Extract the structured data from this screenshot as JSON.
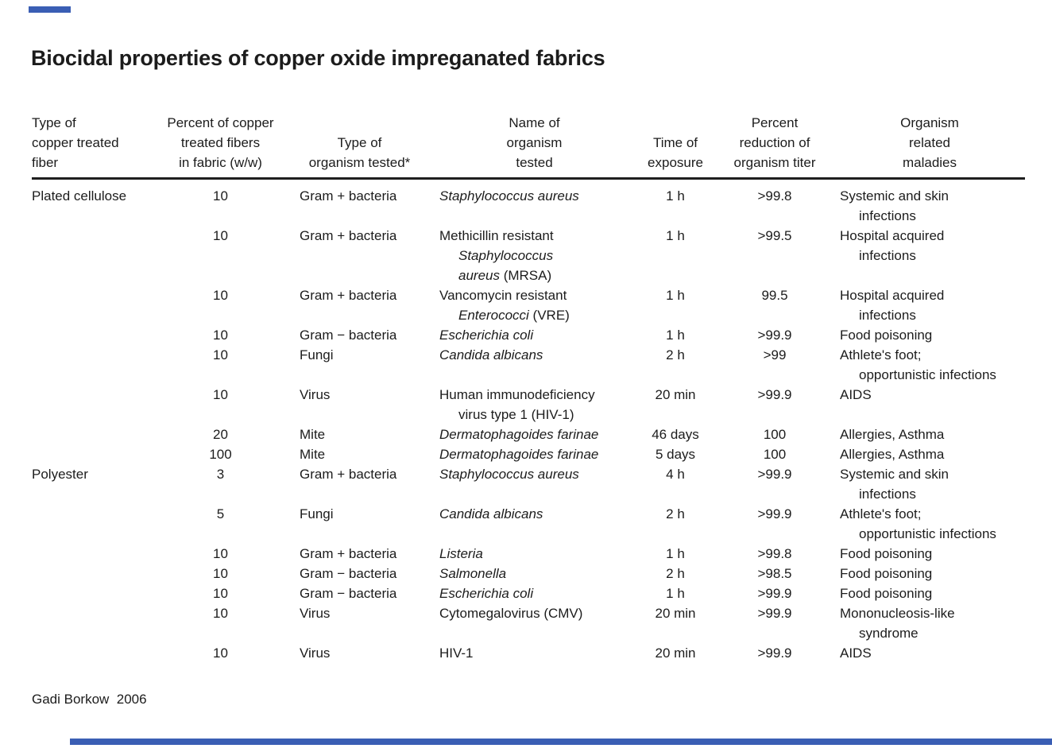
{
  "page": {
    "title": "Biocidal properties of copper oxide impreganated fabrics",
    "footer_credit": "Gadi Borkow  2006",
    "accent_blue": "#3a5eb4"
  },
  "table": {
    "headers": [
      {
        "align": "left",
        "lines": [
          "Type of",
          "copper treated",
          "fiber"
        ]
      },
      {
        "align": "center",
        "lines": [
          "Percent of copper",
          "treated fibers",
          "in fabric (w/w)"
        ]
      },
      {
        "align": "center",
        "lines": [
          "",
          "Type of",
          "organism tested*"
        ]
      },
      {
        "align": "center",
        "lines": [
          "Name of",
          "organism",
          "tested"
        ]
      },
      {
        "align": "center",
        "lines": [
          "",
          "Time of",
          "exposure"
        ]
      },
      {
        "align": "center",
        "lines": [
          "Percent",
          "reduction of",
          "organism titer"
        ]
      },
      {
        "align": "center",
        "lines": [
          "Organism",
          "related",
          "maladies"
        ]
      }
    ],
    "rows": [
      {
        "fiber": "Plated cellulose",
        "percent": "10",
        "type": "Gram + bacteria",
        "organism": [
          {
            "ind": 0,
            "segs": [
              {
                "t": "Staphylococcus aureus",
                "i": true
              }
            ]
          }
        ],
        "time": "1 h",
        "reduction": ">99.8",
        "maladies": [
          {
            "ind": 0,
            "t": "Systemic and skin"
          },
          {
            "ind": 1,
            "t": "infections"
          }
        ]
      },
      {
        "fiber": "",
        "percent": "10",
        "type": "Gram + bacteria",
        "organism": [
          {
            "ind": 0,
            "segs": [
              {
                "t": "Methicillin resistant"
              }
            ]
          },
          {
            "ind": 1,
            "segs": [
              {
                "t": "Staphylococcus",
                "i": true
              }
            ]
          },
          {
            "ind": 1,
            "segs": [
              {
                "t": "aureus",
                "i": true
              },
              {
                "t": " (MRSA)"
              }
            ]
          }
        ],
        "time": "1 h",
        "reduction": ">99.5",
        "maladies": [
          {
            "ind": 0,
            "t": "Hospital acquired"
          },
          {
            "ind": 1,
            "t": "infections"
          }
        ]
      },
      {
        "fiber": "",
        "percent": "10",
        "type": "Gram + bacteria",
        "organism": [
          {
            "ind": 0,
            "segs": [
              {
                "t": "Vancomycin resistant"
              }
            ]
          },
          {
            "ind": 1,
            "segs": [
              {
                "t": "Enterococci",
                "i": true
              },
              {
                "t": " (VRE)"
              }
            ]
          }
        ],
        "time": "1 h",
        "reduction": "99.5",
        "maladies": [
          {
            "ind": 0,
            "t": "Hospital acquired"
          },
          {
            "ind": 1,
            "t": "infections"
          }
        ]
      },
      {
        "fiber": "",
        "percent": "10",
        "type": "Gram − bacteria",
        "organism": [
          {
            "ind": 0,
            "segs": [
              {
                "t": "Escherichia coli",
                "i": true
              }
            ]
          }
        ],
        "time": "1 h",
        "reduction": ">99.9",
        "maladies": [
          {
            "ind": 0,
            "t": "Food poisoning"
          }
        ]
      },
      {
        "fiber": "",
        "percent": "10",
        "type": "Fungi",
        "organism": [
          {
            "ind": 0,
            "segs": [
              {
                "t": "Candida albicans",
                "i": true
              }
            ]
          }
        ],
        "time": "2 h",
        "reduction": ">99",
        "maladies": [
          {
            "ind": 0,
            "t": "Athlete's foot;"
          },
          {
            "ind": 1,
            "t": "opportunistic infections"
          }
        ]
      },
      {
        "fiber": "",
        "percent": "10",
        "type": "Virus",
        "organism": [
          {
            "ind": 0,
            "segs": [
              {
                "t": "Human immunodeficiency"
              }
            ]
          },
          {
            "ind": 1,
            "segs": [
              {
                "t": "virus type 1 (HIV-1)"
              }
            ]
          }
        ],
        "time": "20 min",
        "reduction": ">99.9",
        "maladies": [
          {
            "ind": 0,
            "t": "AIDS"
          }
        ]
      },
      {
        "fiber": "",
        "percent": "20",
        "type": "Mite",
        "organism": [
          {
            "ind": 0,
            "segs": [
              {
                "t": "Dermatophagoides farinae",
                "i": true
              }
            ]
          }
        ],
        "time": "46 days",
        "reduction": "100",
        "maladies": [
          {
            "ind": 0,
            "t": "Allergies, Asthma"
          }
        ]
      },
      {
        "fiber": "",
        "percent": "100",
        "type": "Mite",
        "organism": [
          {
            "ind": 0,
            "segs": [
              {
                "t": "Dermatophagoides farinae",
                "i": true
              }
            ]
          }
        ],
        "time": "5 days",
        "reduction": "100",
        "maladies": [
          {
            "ind": 0,
            "t": "Allergies, Asthma"
          }
        ]
      },
      {
        "fiber": "Polyester",
        "percent": "3",
        "type": "Gram + bacteria",
        "organism": [
          {
            "ind": 0,
            "segs": [
              {
                "t": "Staphylococcus aureus",
                "i": true
              }
            ]
          }
        ],
        "time": "4 h",
        "reduction": ">99.9",
        "maladies": [
          {
            "ind": 0,
            "t": "Systemic and skin"
          },
          {
            "ind": 1,
            "t": "infections"
          }
        ]
      },
      {
        "fiber": "",
        "percent": "5",
        "type": "Fungi",
        "organism": [
          {
            "ind": 0,
            "segs": [
              {
                "t": "Candida albicans",
                "i": true
              }
            ]
          }
        ],
        "time": "2 h",
        "reduction": ">99.9",
        "maladies": [
          {
            "ind": 0,
            "t": "Athlete's foot;"
          },
          {
            "ind": 1,
            "t": "opportunistic infections"
          }
        ]
      },
      {
        "fiber": "",
        "percent": "10",
        "type": "Gram + bacteria",
        "organism": [
          {
            "ind": 0,
            "segs": [
              {
                "t": "Listeria",
                "i": true
              }
            ]
          }
        ],
        "time": "1 h",
        "reduction": ">99.8",
        "maladies": [
          {
            "ind": 0,
            "t": "Food poisoning"
          }
        ]
      },
      {
        "fiber": "",
        "percent": "10",
        "type": "Gram − bacteria",
        "organism": [
          {
            "ind": 0,
            "segs": [
              {
                "t": "Salmonella",
                "i": true
              }
            ]
          }
        ],
        "time": "2 h",
        "reduction": ">98.5",
        "maladies": [
          {
            "ind": 0,
            "t": "Food poisoning"
          }
        ]
      },
      {
        "fiber": "",
        "percent": "10",
        "type": "Gram − bacteria",
        "organism": [
          {
            "ind": 0,
            "segs": [
              {
                "t": "Escherichia coli",
                "i": true
              }
            ]
          }
        ],
        "time": "1 h",
        "reduction": ">99.9",
        "maladies": [
          {
            "ind": 0,
            "t": "Food poisoning"
          }
        ]
      },
      {
        "fiber": "",
        "percent": "10",
        "type": "Virus",
        "organism": [
          {
            "ind": 0,
            "segs": [
              {
                "t": "Cytomegalovirus (CMV)"
              }
            ]
          }
        ],
        "time": "20 min",
        "reduction": ">99.9",
        "maladies": [
          {
            "ind": 0,
            "t": "Mononucleosis-like"
          },
          {
            "ind": 1,
            "t": "syndrome"
          }
        ]
      },
      {
        "fiber": "",
        "percent": "10",
        "type": "Virus",
        "organism": [
          {
            "ind": 0,
            "segs": [
              {
                "t": "HIV-1"
              }
            ]
          }
        ],
        "time": "20 min",
        "reduction": ">99.9",
        "maladies": [
          {
            "ind": 0,
            "t": "AIDS"
          }
        ]
      }
    ]
  }
}
